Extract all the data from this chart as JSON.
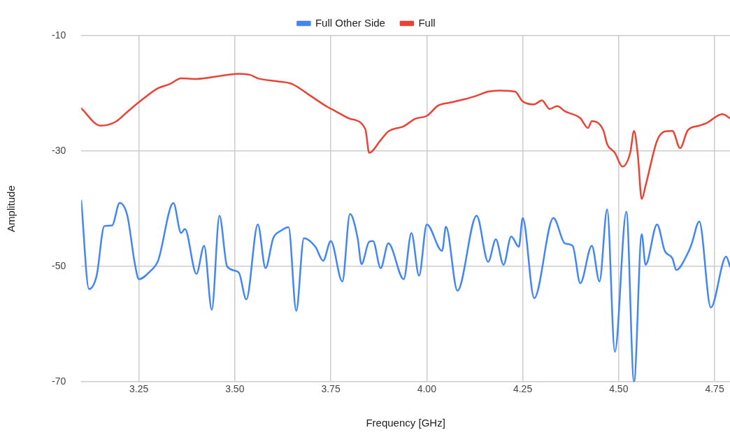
{
  "chart_data": {
    "type": "line",
    "xlabel": "Frequency [GHz]",
    "ylabel": "Amplitude",
    "xlim": [
      3.1,
      4.79
    ],
    "ylim": [
      -70,
      -10
    ],
    "xticks": [
      {
        "value": 3.25,
        "label": "3.25"
      },
      {
        "value": 3.5,
        "label": "3.50"
      },
      {
        "value": 3.75,
        "label": "3.75"
      },
      {
        "value": 4,
        "label": "4.00"
      },
      {
        "value": 4.25,
        "label": "4.25"
      },
      {
        "value": 4.5,
        "label": "4.50"
      },
      {
        "value": 4.75,
        "label": "4.75"
      }
    ],
    "yticks": [
      -70,
      -50,
      -30,
      -10
    ],
    "grid": true,
    "legend": "top",
    "marker": "none",
    "line_style": "solid",
    "series": [
      {
        "name": "Full Other Side",
        "color": "#4285f4",
        "x": [
          3.1,
          3.12,
          3.14,
          3.16,
          3.18,
          3.2,
          3.22,
          3.24,
          3.25,
          3.28,
          3.3,
          3.34,
          3.36,
          3.37,
          3.4,
          3.42,
          3.44,
          3.46,
          3.48,
          3.51,
          3.53,
          3.56,
          3.58,
          3.6,
          3.62,
          3.64,
          3.66,
          3.68,
          3.71,
          3.73,
          3.75,
          3.78,
          3.8,
          3.82,
          3.83,
          3.85,
          3.86,
          3.88,
          3.9,
          3.94,
          3.96,
          3.98,
          4.0,
          4.04,
          4.05,
          4.08,
          4.13,
          4.16,
          4.18,
          4.2,
          4.22,
          4.24,
          4.25,
          4.28,
          4.33,
          4.36,
          4.38,
          4.4,
          4.43,
          4.45,
          4.47,
          4.49,
          4.52,
          4.54,
          4.56,
          4.57,
          4.6,
          4.62,
          4.64,
          4.65,
          4.68,
          4.69,
          4.71,
          4.74,
          4.78,
          4.79
        ],
        "values": [
          -38.6,
          -53.9,
          -51.6,
          -43.0,
          -42.9,
          -39.0,
          -41.2,
          -49.7,
          -52.2,
          -50.8,
          -49.0,
          -39.0,
          -44.2,
          -43.5,
          -51.3,
          -46.4,
          -57.5,
          -41.2,
          -50.0,
          -51.0,
          -55.7,
          -42.7,
          -50.3,
          -45.1,
          -43.8,
          -43.2,
          -57.7,
          -45.1,
          -46.6,
          -49.0,
          -45.6,
          -52.6,
          -40.9,
          -45.1,
          -49.6,
          -45.7,
          -45.6,
          -50.3,
          -46.0,
          -52.2,
          -44.2,
          -51.6,
          -42.7,
          -47.3,
          -43.1,
          -54.2,
          -41.2,
          -49.2,
          -45.3,
          -49.7,
          -44.8,
          -46.6,
          -41.6,
          -55.5,
          -41.6,
          -46.0,
          -46.4,
          -52.9,
          -46.4,
          -52.6,
          -40.1,
          -64.8,
          -40.5,
          -70,
          -44.4,
          -49.7,
          -42.7,
          -47.3,
          -48.6,
          -50.6,
          -47.7,
          -46.1,
          -42.2,
          -57.1,
          -48.3,
          -50.0
        ]
      },
      {
        "name": "Full",
        "color": "#ea4335",
        "x": [
          3.1,
          3.15,
          3.19,
          3.22,
          3.26,
          3.3,
          3.33,
          3.36,
          3.4,
          3.43,
          3.47,
          3.51,
          3.54,
          3.56,
          3.61,
          3.65,
          3.69,
          3.74,
          3.76,
          3.8,
          3.84,
          3.85,
          3.88,
          3.9,
          3.94,
          3.97,
          4.0,
          4.03,
          4.06,
          4.1,
          4.13,
          4.16,
          4.19,
          4.23,
          4.25,
          4.28,
          4.3,
          4.32,
          4.34,
          4.36,
          4.4,
          4.42,
          4.43,
          4.46,
          4.47,
          4.49,
          4.51,
          4.53,
          4.54,
          4.55,
          4.56,
          4.57,
          4.6,
          4.62,
          4.64,
          4.66,
          4.68,
          4.71,
          4.73,
          4.77,
          4.79
        ],
        "values": [
          -22.6,
          -25.6,
          -24.9,
          -23.2,
          -21.0,
          -19.1,
          -18.4,
          -17.4,
          -17.5,
          -17.3,
          -16.9,
          -16.6,
          -16.8,
          -17.4,
          -17.9,
          -18.4,
          -20.1,
          -22.3,
          -23.0,
          -24.4,
          -26.2,
          -30.3,
          -28.1,
          -26.6,
          -25.7,
          -24.4,
          -23.9,
          -22.1,
          -21.6,
          -21.0,
          -20.4,
          -19.7,
          -19.5,
          -19.7,
          -21.4,
          -21.9,
          -21.2,
          -22.7,
          -22.2,
          -23.1,
          -24.3,
          -26.0,
          -24.8,
          -26.4,
          -28.8,
          -30.3,
          -32.7,
          -30.3,
          -26.5,
          -30.8,
          -38.3,
          -36.0,
          -28.2,
          -26.6,
          -26.5,
          -29.5,
          -26.4,
          -25.6,
          -25.1,
          -23.6,
          -24.3
        ]
      }
    ]
  }
}
